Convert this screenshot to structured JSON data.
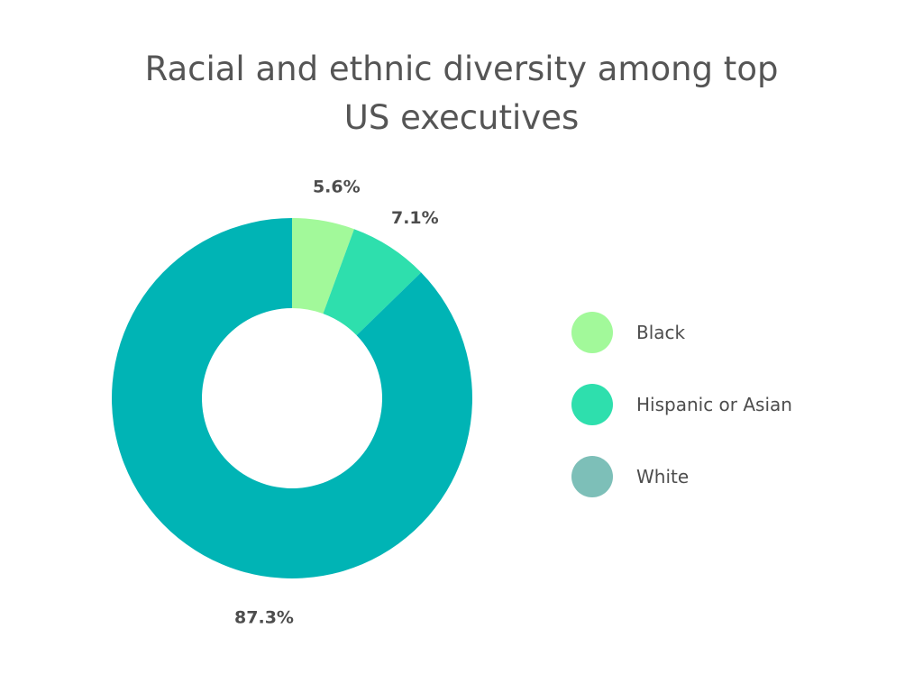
{
  "chart_data": {
    "type": "pie",
    "variant": "donut",
    "title": [
      "Racial and ethnic diversity among top",
      "US executives"
    ],
    "series": [
      {
        "name": "Black",
        "value": 5.6,
        "label": "5.6%",
        "color": "#a2f99a"
      },
      {
        "name": "Hispanic or Asian",
        "value": 7.1,
        "label": "7.1%",
        "color": "#2edfad"
      },
      {
        "name": "White",
        "value": 87.3,
        "label": "87.3%",
        "color": "#00b4b5"
      }
    ],
    "legend": {
      "placement": "right",
      "items": [
        {
          "label": "Black",
          "color": "#a2f99a"
        },
        {
          "label": "Hispanic or Asian",
          "color": "#2edfad"
        },
        {
          "label": "White",
          "color": "#7dbfb8"
        }
      ]
    }
  }
}
